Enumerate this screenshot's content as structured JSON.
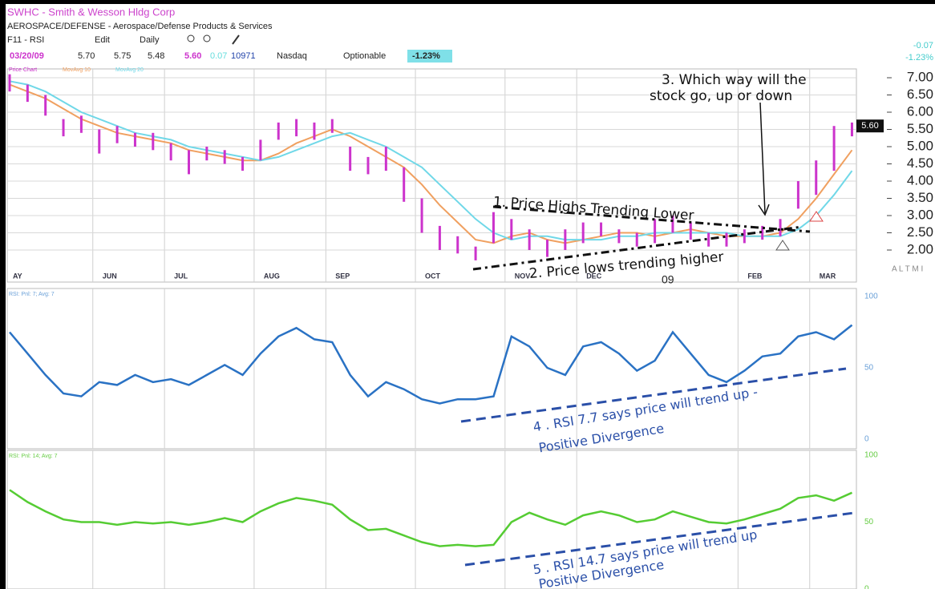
{
  "header": {
    "ticker": "SWHC - Smith & Wesson Hldg Corp",
    "industry": "AEROSPACE/DEFENSE - Aerospace/Defense Products & Services",
    "toolbar": [
      "F11 - RSI",
      "Edit",
      "Daily"
    ],
    "quote": [
      "03/20/09",
      "5.70",
      "5.75",
      "5.48",
      "5.60",
      "0.07",
      "10971",
      "Nasdaq",
      "Optionable",
      "-1.23%"
    ],
    "right": [
      "-0.07",
      "-1.23%"
    ],
    "corner": "A L T M I"
  },
  "annotations": {
    "highs": "1. Price Highs Trending Lower",
    "lows": "2. Price lows trending higher",
    "question": [
      "3. Which way will the",
      "stock go, up or down"
    ],
    "rsi7": [
      "4 . RSI 7.7 says price will trend up -",
      "Positive Divergence"
    ],
    "rsi14": [
      "5 . RSI 14.7 says price will trend up",
      "Positive Divergence"
    ]
  },
  "chart_data": [
    {
      "type": "ohlc",
      "name": "Price Chart",
      "color": "#cc33cc",
      "categories": [
        "AY",
        null,
        null,
        null,
        null,
        "JUN",
        null,
        null,
        null,
        "JUL",
        null,
        null,
        null,
        null,
        "AUG",
        null,
        null,
        null,
        "SEP",
        null,
        null,
        null,
        null,
        "OCT",
        null,
        null,
        null,
        null,
        "NOV",
        null,
        null,
        null,
        "DEC",
        null,
        null,
        null,
        null,
        null,
        null,
        null,
        null,
        "FEB",
        null,
        null,
        null,
        "MAR",
        null,
        null
      ],
      "year_label": "09",
      "high": [
        7.1,
        6.8,
        6.5,
        5.8,
        5.9,
        5.5,
        5.6,
        5.4,
        5.4,
        5.1,
        4.9,
        5.0,
        4.9,
        4.7,
        5.2,
        5.7,
        5.8,
        5.7,
        5.8,
        5.0,
        4.7,
        5.0,
        4.4,
        3.5,
        2.7,
        2.4,
        2.1,
        3.1,
        2.9,
        2.6,
        2.3,
        2.6,
        2.8,
        2.8,
        2.6,
        2.5,
        2.9,
        3.0,
        2.8,
        2.5,
        2.5,
        2.6,
        2.7,
        2.9,
        4.0,
        4.6,
        5.6,
        5.7
      ],
      "low": [
        6.6,
        6.3,
        5.9,
        5.3,
        5.4,
        4.8,
        5.1,
        5.0,
        4.9,
        4.6,
        4.2,
        4.6,
        4.5,
        4.3,
        4.6,
        5.2,
        5.3,
        5.2,
        5.4,
        4.3,
        4.2,
        4.3,
        3.4,
        2.5,
        2.0,
        1.9,
        1.7,
        2.2,
        2.3,
        2.0,
        1.8,
        2.0,
        2.2,
        2.4,
        2.2,
        2.1,
        2.2,
        2.5,
        2.3,
        2.1,
        2.1,
        2.2,
        2.3,
        2.4,
        3.2,
        3.6,
        4.3,
        5.3
      ],
      "series": [
        {
          "name": "MovAvg 10",
          "color": "#f0a060",
          "values": [
            6.8,
            6.6,
            6.4,
            6.1,
            5.8,
            5.6,
            5.4,
            5.3,
            5.2,
            5.1,
            4.9,
            4.8,
            4.7,
            4.6,
            4.6,
            4.8,
            5.1,
            5.3,
            5.5,
            5.3,
            5.0,
            4.7,
            4.4,
            3.9,
            3.3,
            2.8,
            2.3,
            2.2,
            2.4,
            2.5,
            2.3,
            2.2,
            2.3,
            2.4,
            2.5,
            2.5,
            2.4,
            2.5,
            2.6,
            2.5,
            2.4,
            2.4,
            2.4,
            2.5,
            2.9,
            3.5,
            4.2,
            4.9
          ]
        },
        {
          "name": "MovAvg 20",
          "color": "#70d8e8",
          "values": [
            6.9,
            6.8,
            6.6,
            6.3,
            6.0,
            5.8,
            5.6,
            5.4,
            5.3,
            5.2,
            5.0,
            4.9,
            4.8,
            4.7,
            4.6,
            4.7,
            4.9,
            5.1,
            5.3,
            5.4,
            5.2,
            5.0,
            4.7,
            4.4,
            3.9,
            3.4,
            2.9,
            2.5,
            2.3,
            2.4,
            2.4,
            2.3,
            2.3,
            2.3,
            2.4,
            2.4,
            2.5,
            2.5,
            2.5,
            2.5,
            2.5,
            2.4,
            2.4,
            2.4,
            2.6,
            3.0,
            3.6,
            4.3
          ]
        }
      ],
      "last_price": {
        "value": 5.6,
        "label": "5.60"
      },
      "ylim": [
        1.75,
        7.25
      ],
      "yticks": [
        {
          "value": 7,
          "label": "7.00"
        },
        {
          "value": 6.5,
          "label": "6.50"
        },
        {
          "value": 6,
          "label": "6.00"
        },
        {
          "value": 5.5,
          "label": "5.50"
        },
        {
          "value": 5,
          "label": "5.00"
        },
        {
          "value": 4.5,
          "label": "4.50"
        },
        {
          "value": 4,
          "label": "4.00"
        },
        {
          "value": 3.5,
          "label": "3.50"
        },
        {
          "value": 3,
          "label": "3.00"
        },
        {
          "value": 2.5,
          "label": "2.50"
        },
        {
          "value": 2,
          "label": "2.00"
        }
      ],
      "grid": true
    },
    {
      "type": "line",
      "title": "RSI: Pnl: 7; Avg: 7",
      "series": [
        {
          "name": "RSI 7",
          "color": "#2a72c4",
          "values": [
            75,
            60,
            45,
            32,
            30,
            40,
            38,
            45,
            40,
            42,
            38,
            45,
            52,
            45,
            60,
            72,
            78,
            70,
            68,
            45,
            30,
            40,
            35,
            28,
            25,
            28,
            28,
            30,
            72,
            65,
            50,
            45,
            65,
            68,
            60,
            48,
            55,
            75,
            60,
            45,
            40,
            48,
            58,
            60,
            72,
            75,
            70,
            80
          ]
        }
      ],
      "ylim": [
        0,
        100
      ],
      "yticks": [
        100,
        50,
        0
      ],
      "tick_color": "#6aa0d8"
    },
    {
      "type": "line",
      "title": "RSI: Pnl: 14; Avg: 7",
      "series": [
        {
          "name": "RSI 14",
          "color": "#55cc33",
          "values": [
            74,
            65,
            58,
            52,
            50,
            50,
            48,
            50,
            49,
            50,
            48,
            50,
            53,
            50,
            58,
            64,
            68,
            66,
            63,
            52,
            44,
            45,
            40,
            35,
            32,
            33,
            32,
            33,
            50,
            57,
            52,
            48,
            55,
            58,
            55,
            50,
            52,
            58,
            54,
            50,
            49,
            52,
            56,
            60,
            68,
            70,
            66,
            72
          ]
        }
      ],
      "ylim": [
        0,
        100
      ],
      "yticks": [
        100,
        50,
        0
      ],
      "tick_color": "#66cc44"
    }
  ]
}
